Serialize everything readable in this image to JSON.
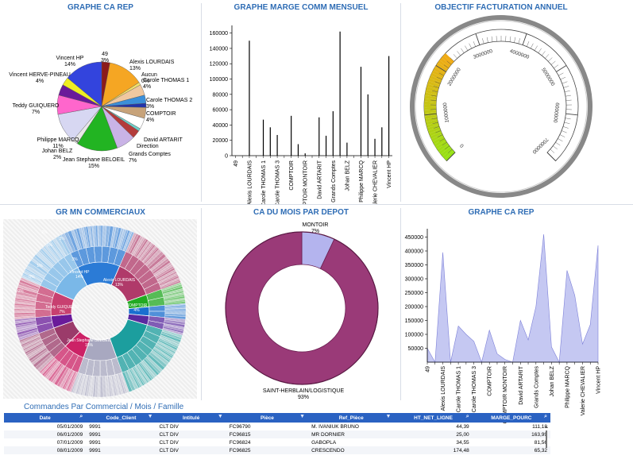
{
  "titles": {
    "pie": "GRAPHE CA REP",
    "marge": "GRAPHE MARGE COMM MENSUEL",
    "gauge": "OBJECTIF FACTURATION ANNUEL",
    "sunburst": "GR MN COMMERCIAUX",
    "depot": "CA DU MOIS PAR DEPOT",
    "area": "GRAPHE CA REP"
  },
  "commerciaux": [
    "49",
    "Alexis LOURDAIS",
    "Aucun",
    "Carole THOMAS 1",
    "Carole THOMAS 2",
    "Carole THOMAS 3",
    "COMPTOIR",
    "COMPTOIR MONTOIR",
    "David ARTARIT",
    "Direction",
    "Grands Comptes",
    "Johan BELZ",
    "Philippe MARCQ",
    "Teddy GUIQUERO",
    "Jean Stephane BELOEIL",
    "Valerie HERVE-PINEAU",
    "Valerie CHEVALIER",
    "Vincent HP"
  ],
  "chart_data": [
    {
      "type": "pie",
      "title": "GRAPHE CA REP",
      "labels": [
        {
          "name": "49",
          "pct": "3%"
        },
        {
          "name": "Alexis LOURDAIS",
          "pct": "13%"
        },
        {
          "name": "Aucun",
          "pct": "0%"
        },
        {
          "name": "Carole THOMAS 1",
          "pct": "4%"
        },
        {
          "name": "Carole THOMAS 2",
          "pct": "3%"
        },
        {
          "name": "COMPTOIR",
          "pct": "4%"
        },
        {
          "name": "David ARTARIT",
          "pct": ""
        },
        {
          "name": "Direction",
          "pct": ""
        },
        {
          "name": "Grands Comptes",
          "pct": "7%"
        },
        {
          "name": "Jean Stephane BELOEIL",
          "pct": "15%"
        },
        {
          "name": "Johan BELZ",
          "pct": "2%"
        },
        {
          "name": "Philippe MARCQ",
          "pct": "11%"
        },
        {
          "name": "Teddy GUIQUERO",
          "pct": "7%"
        },
        {
          "name": "Vincent HERVE-PINEAU",
          "pct": "4%"
        },
        {
          "name": "Vincent HP",
          "pct": "14%"
        }
      ],
      "slices": [
        {
          "value": 3,
          "color": "#8b1a1a"
        },
        {
          "value": 13,
          "color": "#f5a623"
        },
        {
          "value": 1,
          "color": "#f3e16b"
        },
        {
          "value": 4,
          "color": "#f0c8a0"
        },
        {
          "value": 3,
          "color": "#3b8fd9"
        },
        {
          "value": 1.5,
          "color": "#2233aa"
        },
        {
          "value": 4,
          "color": "#c7a37a"
        },
        {
          "value": 4,
          "color": "#ffffff"
        },
        {
          "value": 1,
          "color": "#6fd0c9"
        },
        {
          "value": 3,
          "color": "#b33b3b"
        },
        {
          "value": 7,
          "color": "#c9b3e6"
        },
        {
          "value": 15,
          "color": "#22b422"
        },
        {
          "value": 2,
          "color": "#e8e8e8"
        },
        {
          "value": 11,
          "color": "#d7d7f2"
        },
        {
          "value": 7,
          "color": "#ff66cc"
        },
        {
          "value": 4,
          "color": "#6a1b9a"
        },
        {
          "value": 3,
          "color": "#eeee22"
        },
        {
          "value": 14,
          "color": "#3344dd"
        }
      ]
    },
    {
      "type": "bar",
      "title": "GRAPHE MARGE COMM MENSUEL",
      "categories": [
        "49",
        "",
        "Alexis LOURDAIS",
        "",
        "Carole THOMAS 1",
        "",
        "Carole THOMAS 3",
        "",
        "COMPTOIR",
        "",
        "COMPTOIR MONTOIR",
        "",
        "David ARTARIT",
        "",
        "Grands Comptes",
        "",
        "Johan BELZ",
        "",
        "Philippe MARCQ",
        "",
        "Valerie CHEVALIER",
        "",
        "Vincent HP"
      ],
      "values": [
        0,
        0,
        150000,
        0,
        47000,
        37000,
        27000,
        0,
        52000,
        15000,
        3000,
        0,
        50000,
        26000,
        58000,
        162000,
        17000,
        0,
        116000,
        80000,
        22000,
        37000,
        130000
      ],
      "ylim": [
        0,
        170000
      ],
      "yticks": [
        "0",
        "20000",
        "40000",
        "60000",
        "80000",
        "100000",
        "120000",
        "140000",
        "160000"
      ],
      "grid": false
    },
    {
      "type": "gauge",
      "title": "OBJECTIF FACTURATION ANNUEL",
      "min": 0,
      "max": 7000000,
      "value": 2300000,
      "ticks": [
        "0",
        "1000000",
        "2000000",
        "3000000",
        "4000000",
        "5000000",
        "6000000",
        "7000000"
      ]
    },
    {
      "type": "sunburst",
      "title": "GR MN COMMERCIAUX",
      "labels": [
        {
          "name": "Vincent HP",
          "pct": "14%"
        },
        {
          "name": "Alexis LOURDAIS",
          "pct": "13%"
        },
        {
          "name": "COMPTOIR",
          "pct": "4%"
        },
        {
          "name": "Jean Stephane BELOEIL",
          "pct": "15%"
        },
        {
          "name": "Teddy GUIQUERO",
          "pct": "7%"
        }
      ],
      "ring_labels": [
        "2%",
        "3%",
        "3%",
        "3%",
        "0%",
        "1%",
        "0%"
      ]
    },
    {
      "type": "pie",
      "title": "CA DU MOIS PAR DEPOT",
      "labels": [
        {
          "name": "MONTOIR",
          "pct": "7%"
        },
        {
          "name": "SAINT-HERBLAIN/LOGISTIQUE",
          "pct": "93%"
        }
      ],
      "values": [
        7,
        93
      ]
    },
    {
      "type": "area",
      "title": "GRAPHE CA REP",
      "categories": [
        "49",
        "",
        "Alexis LOURDAIS",
        "",
        "Carole THOMAS 1",
        "",
        "Carole THOMAS 3",
        "",
        "COMPTOIR",
        "",
        "COMPTOIR MONTOIR",
        "",
        "David ARTARIT",
        "",
        "Grands Comptes",
        "",
        "Johan BELZ",
        "",
        "Philippe MARCQ",
        "",
        "Valerie CHEVALIER",
        "",
        "Vincent HP"
      ],
      "values": [
        50000,
        0,
        395000,
        0,
        130000,
        100000,
        75000,
        0,
        115000,
        30000,
        10000,
        0,
        150000,
        80000,
        200000,
        460000,
        55000,
        0,
        330000,
        240000,
        65000,
        135000,
        420000
      ],
      "ylim": [
        0,
        480000
      ],
      "yticks": [
        "50000",
        "100000",
        "150000",
        "200000",
        "250000",
        "300000",
        "350000",
        "400000",
        "450000"
      ],
      "color": "#c5c8f2"
    }
  ],
  "table": {
    "title": "Commandes Par Commercial / Mois / Famille",
    "columns": [
      "Date",
      "Code_Client",
      "Intitulé",
      "Pièce",
      "Ref_Pièce",
      "HT_NET_LIGNE",
      "MARGE_POURC"
    ],
    "rows": [
      [
        "05/01/2009",
        "9991",
        "CLT DIV",
        "FC96790",
        "M. IVANIUK BRUNO",
        "44,39",
        "111,18"
      ],
      [
        "06/01/2009",
        "9991",
        "CLT DIV",
        "FC96815",
        "MR DORNIER",
        "25,00",
        "163,99"
      ],
      [
        "07/01/2009",
        "9991",
        "CLT DIV",
        "FC96824",
        "GABOPLA",
        "34,55",
        "81,56"
      ],
      [
        "08/01/2009",
        "9991",
        "CLT DIV",
        "FC96825",
        "CRESCENDO",
        "174,48",
        "65,32"
      ]
    ]
  }
}
